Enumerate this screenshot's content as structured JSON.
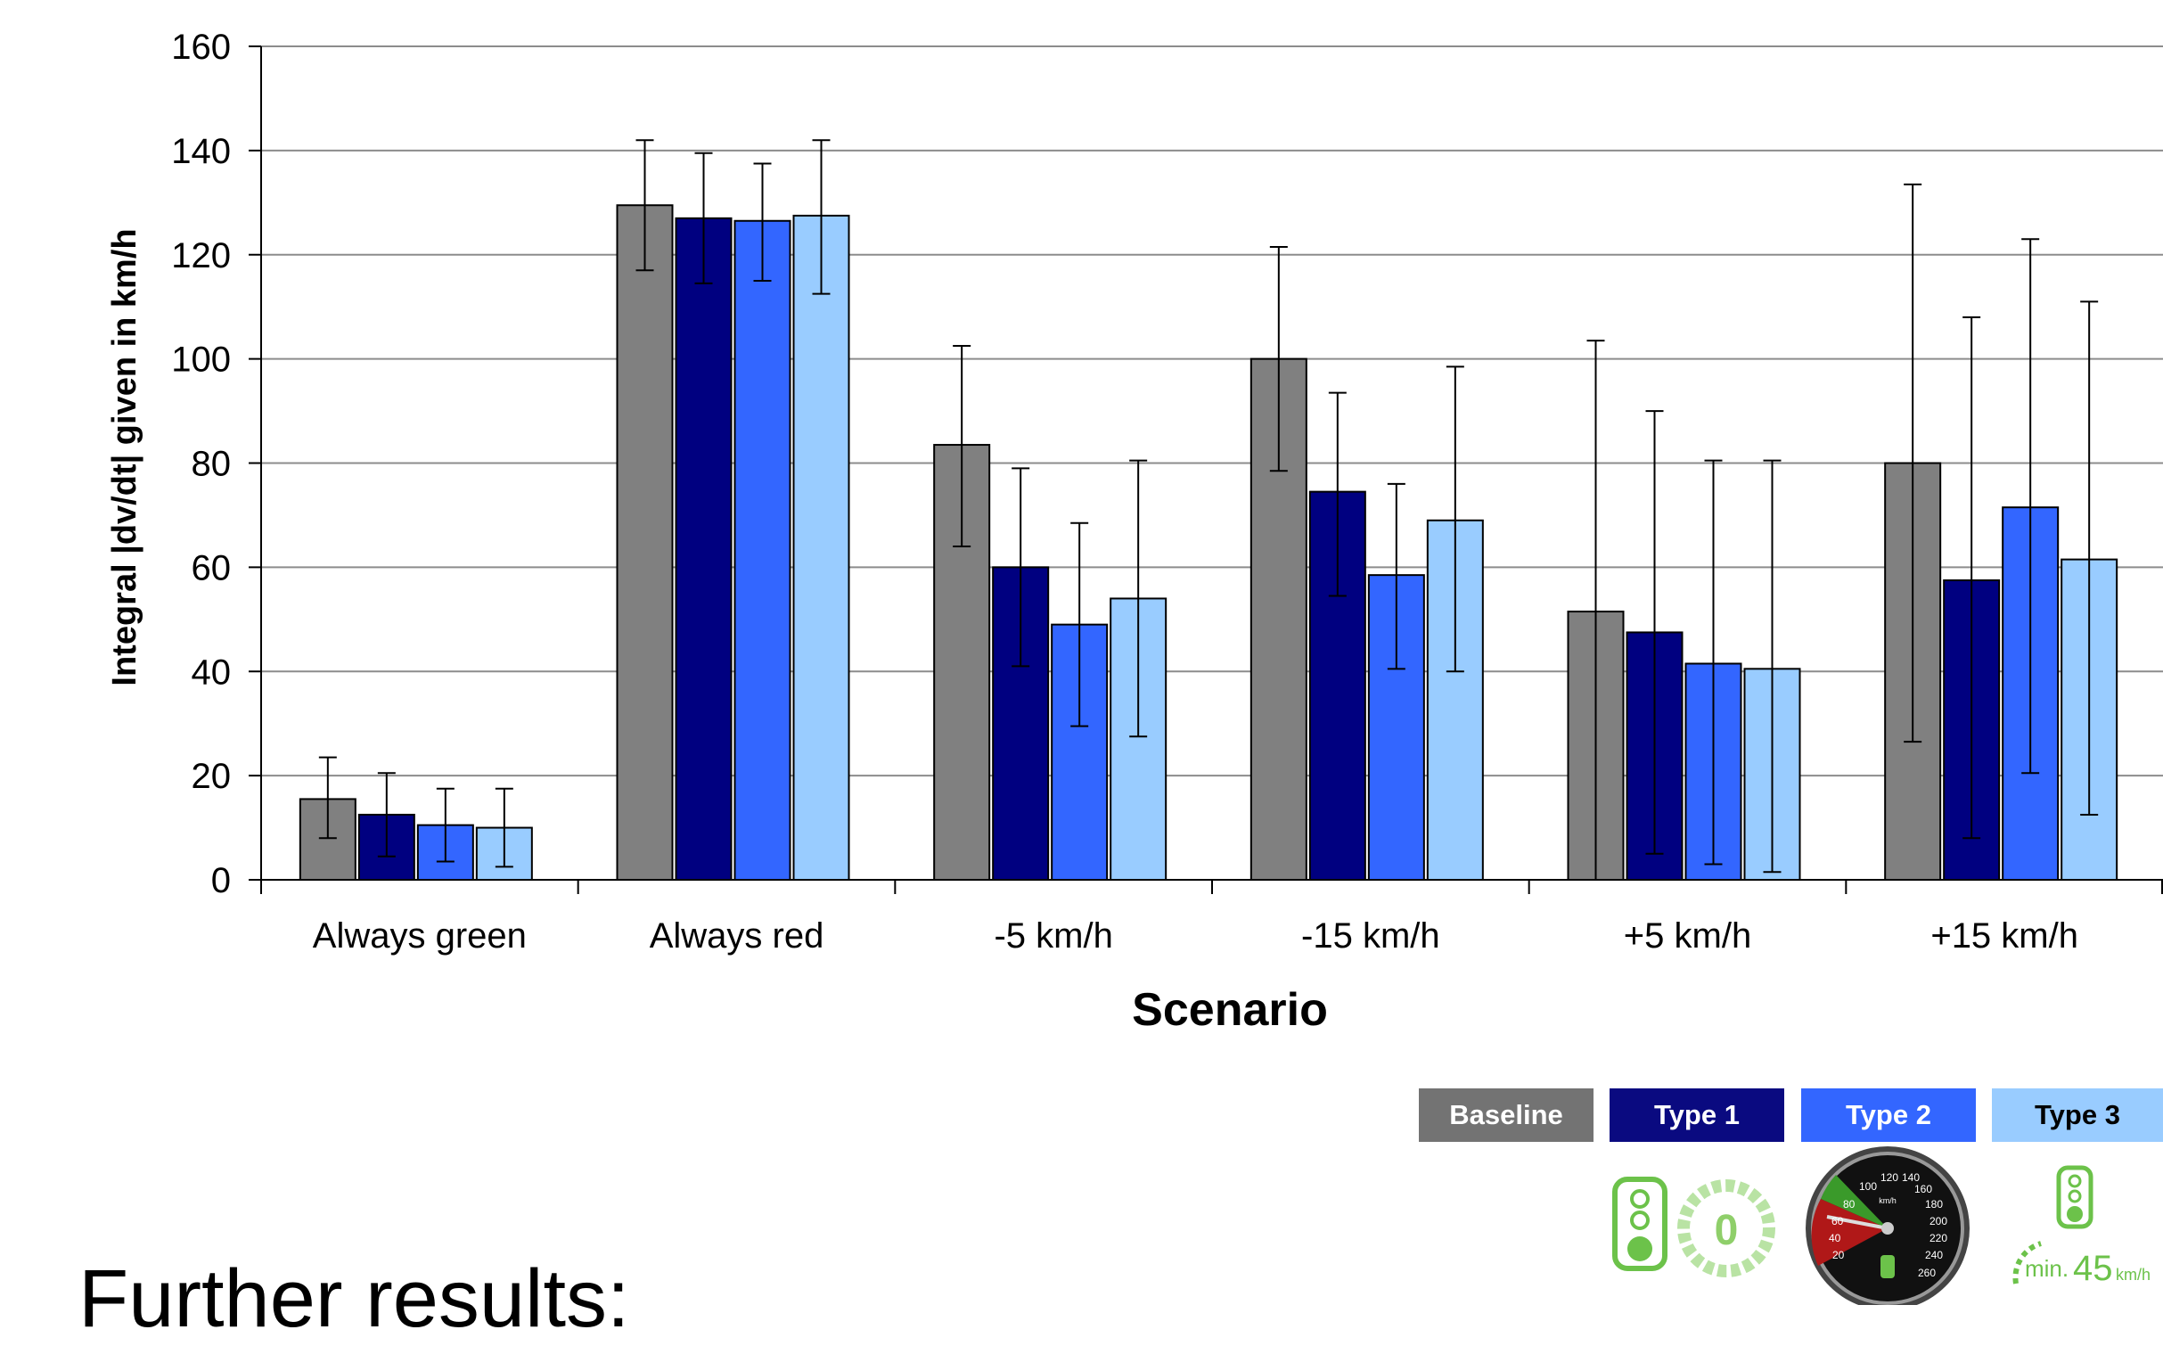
{
  "chart_data": {
    "type": "bar",
    "xlabel": "Scenario",
    "ylabel": "Integral |dv/dt| given in km/h",
    "ylim": [
      0,
      160
    ],
    "yticks": [
      0,
      20,
      40,
      60,
      80,
      100,
      120,
      140,
      160
    ],
    "grid": true,
    "categories": [
      "Always green",
      "Always red",
      "-5 km/h",
      "-15 km/h",
      "+5 km/h",
      "+15 km/h"
    ],
    "series": [
      {
        "name": "Baseline",
        "color": "#808080",
        "values": [
          15.5,
          129.5,
          83.5,
          100,
          51.5,
          80
        ],
        "error_low": [
          8,
          117,
          64,
          78.5,
          0,
          26.5
        ],
        "error_high": [
          23.5,
          142,
          102.5,
          121.5,
          103.5,
          133.5
        ]
      },
      {
        "name": "Type 1",
        "color": "#000080",
        "values": [
          12.5,
          127,
          60,
          74.5,
          47.5,
          57.5
        ],
        "error_low": [
          4.5,
          114.5,
          41,
          54.5,
          5,
          8
        ],
        "error_high": [
          20.5,
          139.5,
          79,
          93.5,
          90,
          108
        ]
      },
      {
        "name": "Type 2",
        "color": "#3366ff",
        "values": [
          10.5,
          126.5,
          49,
          58.5,
          41.5,
          71.5
        ],
        "error_low": [
          3.5,
          115,
          29.5,
          40.5,
          3,
          20.5
        ],
        "error_high": [
          17.5,
          137.5,
          68.5,
          76,
          80.5,
          123
        ]
      },
      {
        "name": "Type 3",
        "color": "#99ccff",
        "values": [
          10,
          127.5,
          54,
          69,
          40.5,
          61.5
        ],
        "error_low": [
          2.5,
          112.5,
          27.5,
          40,
          1.5,
          12.5
        ],
        "error_high": [
          17.5,
          142,
          80.5,
          98.5,
          80.5,
          111
        ]
      }
    ]
  },
  "legend": [
    {
      "label": "Baseline",
      "bg": "#737373",
      "fg": "#ffffff",
      "icon": "traffic-light-countdown-icon"
    },
    {
      "label": "Type 1",
      "bg": "#0a0a80",
      "fg": "#ffffff",
      "icon": "speedometer-icon"
    },
    {
      "label": "Type 2",
      "bg": "#3366ff",
      "fg": "#ffffff",
      "icon": "speedometer-icon"
    },
    {
      "label": "Type 3",
      "bg": "#99ccff",
      "fg": "#000000",
      "icon": "traffic-light-min-speed-icon"
    }
  ],
  "icons": {
    "countdown_value": "0",
    "min_speed_prefix": "min.",
    "min_speed_value": "45",
    "min_speed_unit": "km/h",
    "speedometer_ticks": [
      "20",
      "40",
      "60",
      "80",
      "100",
      "120",
      "140",
      "160",
      "180",
      "200",
      "220",
      "240",
      "260"
    ],
    "speedometer_unit": "km/h"
  },
  "caption": "Further results:"
}
